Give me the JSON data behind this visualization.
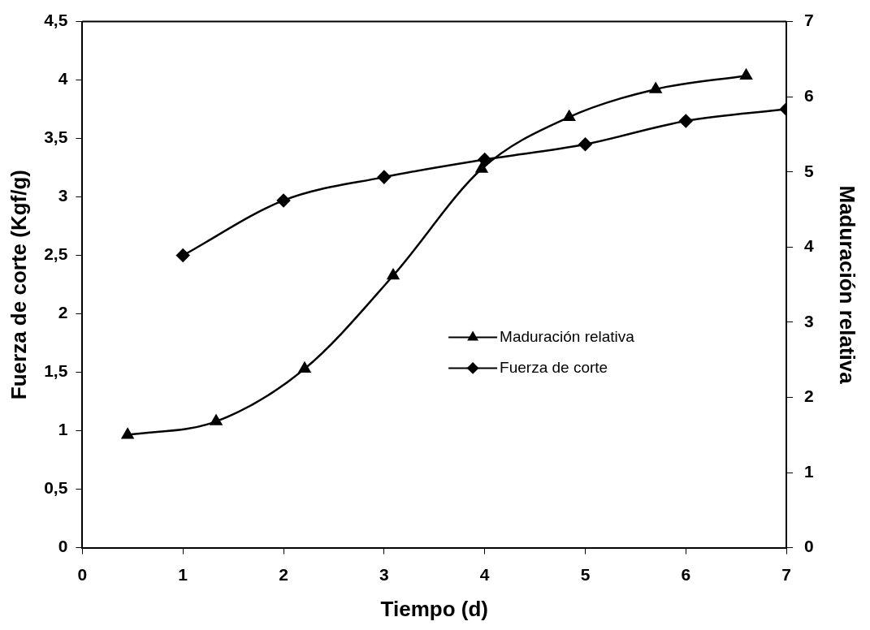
{
  "chart_data": {
    "type": "line",
    "xlabel": "Tiempo (d)",
    "ylabel": "Fuerza de corte (Kgf/g)",
    "y2label": "Maduración relativa",
    "xlim": [
      0,
      7
    ],
    "xticks": [
      0,
      1,
      2,
      3,
      4,
      5,
      6,
      7
    ],
    "ylim": [
      0,
      4.5
    ],
    "yticks": [
      0,
      {
        "value": 0.5,
        "label": "0,5"
      },
      1,
      {
        "value": 1.5,
        "label": "1,5"
      },
      2,
      {
        "value": 2.5,
        "label": "2,5"
      },
      3,
      {
        "value": 3.5,
        "label": "3,5"
      },
      4,
      {
        "value": 4.5,
        "label": "4,5"
      }
    ],
    "y2lim": [
      0,
      7
    ],
    "y2ticks": [
      0,
      1,
      2,
      3,
      4,
      5,
      6,
      7
    ],
    "grid": false,
    "legend": "right",
    "line_style": "solid",
    "series": [
      {
        "name": "Maduración relativa",
        "color": "#000000",
        "marker": "triangle",
        "axis": "y2",
        "x": [
          0.45,
          1.33,
          2.21,
          3.09,
          3.97,
          4.84,
          5.7,
          6.6
        ],
        "values": [
          1.5,
          1.68,
          2.38,
          3.62,
          5.04,
          5.73,
          6.1,
          6.28
        ]
      },
      {
        "name": "Fuerza de corte",
        "color": "#000000",
        "marker": "diamond",
        "x": [
          1,
          2,
          3,
          4,
          5,
          6,
          7
        ],
        "values": [
          2.5,
          2.97,
          3.17,
          3.32,
          3.45,
          3.65,
          3.75
        ]
      }
    ]
  }
}
